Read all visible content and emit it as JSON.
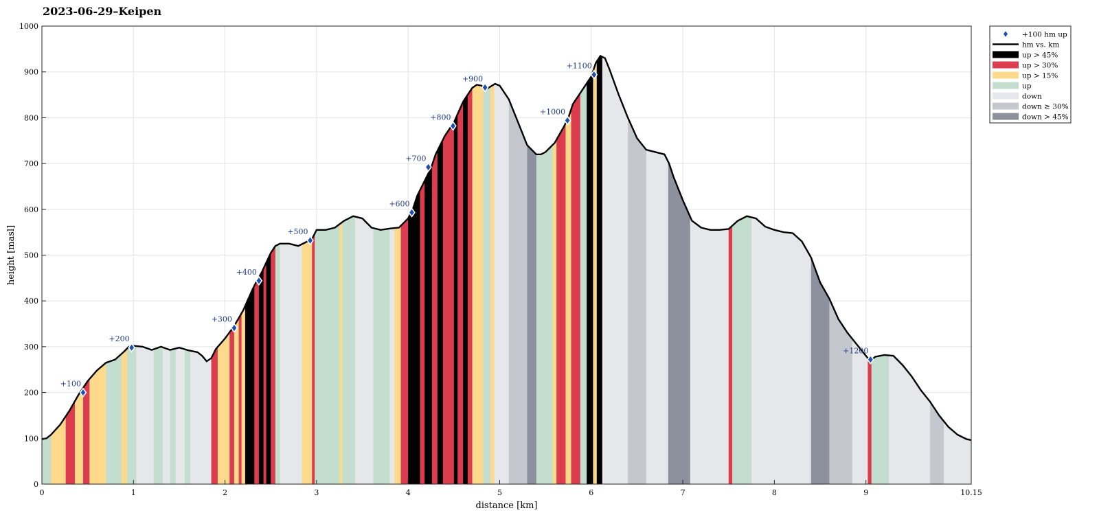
{
  "chart_data": {
    "type": "area",
    "title": "2023-06-29–Keipen",
    "xlabel": "distance [km]",
    "ylabel": "height [masl]",
    "xlim": [
      0,
      10.15
    ],
    "ylim": [
      0,
      1000
    ],
    "x_ticks": [
      0,
      1,
      2,
      3,
      4,
      5,
      6,
      7,
      8,
      9,
      10.15
    ],
    "x_tick_labels": [
      "0",
      "1",
      "2",
      "3",
      "4",
      "5",
      "6",
      "7",
      "8",
      "9",
      "10.15"
    ],
    "y_ticks": [
      0,
      100,
      200,
      300,
      400,
      500,
      600,
      700,
      800,
      900,
      1000
    ],
    "grid": true,
    "legend_position": "outside top-right",
    "profile": {
      "name": "hm vs. km",
      "x": [
        0,
        0.05,
        0.1,
        0.2,
        0.3,
        0.4,
        0.45,
        0.5,
        0.6,
        0.7,
        0.8,
        0.9,
        0.95,
        1.0,
        1.1,
        1.2,
        1.3,
        1.4,
        1.5,
        1.6,
        1.7,
        1.75,
        1.8,
        1.85,
        1.9,
        2.0,
        2.1,
        2.2,
        2.3,
        2.35,
        2.4,
        2.5,
        2.55,
        2.6,
        2.7,
        2.8,
        2.9,
        2.95,
        3.0,
        3.1,
        3.2,
        3.3,
        3.4,
        3.5,
        3.6,
        3.7,
        3.8,
        3.9,
        4.0,
        4.05,
        4.1,
        4.2,
        4.25,
        4.3,
        4.4,
        4.5,
        4.6,
        4.7,
        4.75,
        4.8,
        4.85,
        4.9,
        4.95,
        5.0,
        5.1,
        5.2,
        5.3,
        5.4,
        5.45,
        5.5,
        5.6,
        5.7,
        5.75,
        5.8,
        5.9,
        6.0,
        6.05,
        6.1,
        6.15,
        6.2,
        6.3,
        6.4,
        6.5,
        6.6,
        6.7,
        6.8,
        6.85,
        6.9,
        7.0,
        7.1,
        7.2,
        7.3,
        7.4,
        7.5,
        7.6,
        7.7,
        7.8,
        7.9,
        8.0,
        8.1,
        8.2,
        8.3,
        8.4,
        8.5,
        8.6,
        8.7,
        8.8,
        8.9,
        9.0,
        9.05,
        9.1,
        9.2,
        9.3,
        9.4,
        9.5,
        9.6,
        9.7,
        9.8,
        9.9,
        10.0,
        10.1,
        10.15
      ],
      "y": [
        98,
        100,
        108,
        130,
        160,
        195,
        210,
        225,
        248,
        265,
        272,
        290,
        300,
        302,
        300,
        293,
        300,
        293,
        298,
        292,
        288,
        280,
        268,
        275,
        295,
        318,
        345,
        380,
        425,
        445,
        462,
        505,
        520,
        525,
        525,
        520,
        530,
        535,
        555,
        555,
        560,
        575,
        585,
        580,
        560,
        555,
        558,
        560,
        580,
        600,
        630,
        670,
        690,
        720,
        760,
        790,
        835,
        865,
        872,
        870,
        862,
        868,
        874,
        870,
        840,
        790,
        740,
        720,
        720,
        725,
        745,
        780,
        800,
        830,
        860,
        890,
        920,
        935,
        930,
        905,
        850,
        800,
        755,
        730,
        725,
        720,
        700,
        670,
        620,
        575,
        560,
        555,
        555,
        557,
        575,
        585,
        580,
        562,
        555,
        550,
        548,
        530,
        495,
        440,
        405,
        360,
        330,
        305,
        280,
        268,
        278,
        282,
        280,
        260,
        235,
        205,
        180,
        150,
        125,
        108,
        98,
        96
      ]
    },
    "milestones": {
      "name": "+100 hm up",
      "labels": [
        "+100",
        "+200",
        "+300",
        "+400",
        "+500",
        "+600",
        "+700",
        "+800",
        "+900",
        "+1000",
        "+1100",
        "+1200"
      ],
      "x": [
        0.45,
        0.98,
        2.1,
        2.37,
        2.93,
        4.04,
        4.22,
        4.49,
        4.84,
        5.74,
        6.03,
        9.05
      ],
      "y": [
        200,
        298,
        341,
        444,
        532,
        593,
        692,
        782,
        866,
        794,
        894,
        272
      ]
    },
    "segment_classes": [
      {
        "key": "up45",
        "name": "up > 45%",
        "color": "#000000"
      },
      {
        "key": "up30",
        "name": "up > 30%",
        "color": "#dc3d4e"
      },
      {
        "key": "up15",
        "name": "up > 15%",
        "color": "#fdd98c"
      },
      {
        "key": "up",
        "name": "up",
        "color": "#c3dece"
      },
      {
        "key": "down",
        "name": "down",
        "color": "#e6e7ea"
      },
      {
        "key": "down30",
        "name": "down ≥ 30%",
        "color": "#c5c7ce"
      },
      {
        "key": "down45",
        "name": "down > 45%",
        "color": "#8d909d"
      }
    ],
    "segments": [
      {
        "x0": 0.0,
        "x1": 0.1,
        "c": "up"
      },
      {
        "x0": 0.1,
        "x1": 0.26,
        "c": "up15"
      },
      {
        "x0": 0.26,
        "x1": 0.36,
        "c": "up30"
      },
      {
        "x0": 0.36,
        "x1": 0.45,
        "c": "up15"
      },
      {
        "x0": 0.45,
        "x1": 0.52,
        "c": "up30"
      },
      {
        "x0": 0.52,
        "x1": 0.7,
        "c": "up15"
      },
      {
        "x0": 0.7,
        "x1": 0.87,
        "c": "up"
      },
      {
        "x0": 0.87,
        "x1": 0.93,
        "c": "up15"
      },
      {
        "x0": 0.93,
        "x1": 1.03,
        "c": "up"
      },
      {
        "x0": 1.03,
        "x1": 1.22,
        "c": "down"
      },
      {
        "x0": 1.22,
        "x1": 1.32,
        "c": "up"
      },
      {
        "x0": 1.32,
        "x1": 1.4,
        "c": "down"
      },
      {
        "x0": 1.4,
        "x1": 1.46,
        "c": "up"
      },
      {
        "x0": 1.46,
        "x1": 1.56,
        "c": "down"
      },
      {
        "x0": 1.56,
        "x1": 1.62,
        "c": "up"
      },
      {
        "x0": 1.62,
        "x1": 1.85,
        "c": "down"
      },
      {
        "x0": 1.85,
        "x1": 1.92,
        "c": "up30"
      },
      {
        "x0": 1.92,
        "x1": 2.05,
        "c": "up15"
      },
      {
        "x0": 2.05,
        "x1": 2.1,
        "c": "up30"
      },
      {
        "x0": 2.1,
        "x1": 2.15,
        "c": "up15"
      },
      {
        "x0": 2.15,
        "x1": 2.18,
        "c": "up30"
      },
      {
        "x0": 2.18,
        "x1": 2.22,
        "c": "up15"
      },
      {
        "x0": 2.22,
        "x1": 2.32,
        "c": "up45"
      },
      {
        "x0": 2.32,
        "x1": 2.37,
        "c": "up30"
      },
      {
        "x0": 2.37,
        "x1": 2.42,
        "c": "up45"
      },
      {
        "x0": 2.42,
        "x1": 2.45,
        "c": "up30"
      },
      {
        "x0": 2.45,
        "x1": 2.5,
        "c": "up45"
      },
      {
        "x0": 2.5,
        "x1": 2.55,
        "c": "up30"
      },
      {
        "x0": 2.55,
        "x1": 2.6,
        "c": "up"
      },
      {
        "x0": 2.6,
        "x1": 2.84,
        "c": "down"
      },
      {
        "x0": 2.84,
        "x1": 2.95,
        "c": "up15"
      },
      {
        "x0": 2.95,
        "x1": 2.98,
        "c": "up30"
      },
      {
        "x0": 2.98,
        "x1": 3.03,
        "c": "up"
      },
      {
        "x0": 3.03,
        "x1": 3.25,
        "c": "up"
      },
      {
        "x0": 3.25,
        "x1": 3.28,
        "c": "up15"
      },
      {
        "x0": 3.28,
        "x1": 3.42,
        "c": "up"
      },
      {
        "x0": 3.42,
        "x1": 3.62,
        "c": "down"
      },
      {
        "x0": 3.62,
        "x1": 3.8,
        "c": "up"
      },
      {
        "x0": 3.8,
        "x1": 3.85,
        "c": "down"
      },
      {
        "x0": 3.85,
        "x1": 3.92,
        "c": "up15"
      },
      {
        "x0": 3.92,
        "x1": 4.0,
        "c": "up30"
      },
      {
        "x0": 4.0,
        "x1": 4.04,
        "c": "up45"
      },
      {
        "x0": 4.04,
        "x1": 4.13,
        "c": "up45"
      },
      {
        "x0": 4.13,
        "x1": 4.18,
        "c": "up30"
      },
      {
        "x0": 4.18,
        "x1": 4.26,
        "c": "up45"
      },
      {
        "x0": 4.26,
        "x1": 4.32,
        "c": "up30"
      },
      {
        "x0": 4.32,
        "x1": 4.38,
        "c": "up45"
      },
      {
        "x0": 4.38,
        "x1": 4.5,
        "c": "up30"
      },
      {
        "x0": 4.5,
        "x1": 4.54,
        "c": "up45"
      },
      {
        "x0": 4.54,
        "x1": 4.6,
        "c": "up30"
      },
      {
        "x0": 4.6,
        "x1": 4.65,
        "c": "up45"
      },
      {
        "x0": 4.65,
        "x1": 4.7,
        "c": "up30"
      },
      {
        "x0": 4.7,
        "x1": 4.82,
        "c": "up15"
      },
      {
        "x0": 4.82,
        "x1": 4.9,
        "c": "up"
      },
      {
        "x0": 4.9,
        "x1": 4.94,
        "c": "up15"
      },
      {
        "x0": 4.94,
        "x1": 5.1,
        "c": "down"
      },
      {
        "x0": 5.1,
        "x1": 5.3,
        "c": "down30"
      },
      {
        "x0": 5.3,
        "x1": 5.4,
        "c": "down45"
      },
      {
        "x0": 5.4,
        "x1": 5.58,
        "c": "up"
      },
      {
        "x0": 5.58,
        "x1": 5.62,
        "c": "up15"
      },
      {
        "x0": 5.62,
        "x1": 5.72,
        "c": "up30"
      },
      {
        "x0": 5.72,
        "x1": 5.78,
        "c": "up15"
      },
      {
        "x0": 5.78,
        "x1": 5.88,
        "c": "up30"
      },
      {
        "x0": 5.88,
        "x1": 5.95,
        "c": "up"
      },
      {
        "x0": 5.95,
        "x1": 6.02,
        "c": "up45"
      },
      {
        "x0": 6.02,
        "x1": 6.06,
        "c": "up15"
      },
      {
        "x0": 6.06,
        "x1": 6.12,
        "c": "up45"
      },
      {
        "x0": 6.12,
        "x1": 6.4,
        "c": "down"
      },
      {
        "x0": 6.4,
        "x1": 6.6,
        "c": "down30"
      },
      {
        "x0": 6.6,
        "x1": 6.84,
        "c": "down"
      },
      {
        "x0": 6.84,
        "x1": 7.08,
        "c": "down45"
      },
      {
        "x0": 7.08,
        "x1": 7.5,
        "c": "down"
      },
      {
        "x0": 7.5,
        "x1": 7.54,
        "c": "up30"
      },
      {
        "x0": 7.54,
        "x1": 7.75,
        "c": "up"
      },
      {
        "x0": 7.75,
        "x1": 8.4,
        "c": "down"
      },
      {
        "x0": 8.4,
        "x1": 8.6,
        "c": "down45"
      },
      {
        "x0": 8.6,
        "x1": 8.85,
        "c": "down30"
      },
      {
        "x0": 8.85,
        "x1": 9.02,
        "c": "down"
      },
      {
        "x0": 9.02,
        "x1": 9.06,
        "c": "up30"
      },
      {
        "x0": 9.06,
        "x1": 9.25,
        "c": "up"
      },
      {
        "x0": 9.25,
        "x1": 9.7,
        "c": "down"
      },
      {
        "x0": 9.7,
        "x1": 9.85,
        "c": "down30"
      },
      {
        "x0": 9.85,
        "x1": 10.15,
        "c": "down"
      }
    ]
  }
}
